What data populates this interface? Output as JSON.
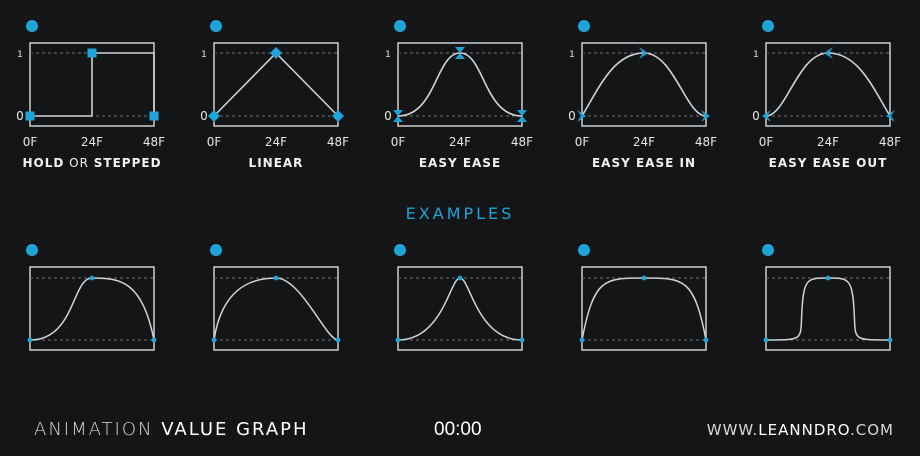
{
  "colors": {
    "background": "#141517",
    "accent": "#1fa4d8",
    "frame": "#d9dde0",
    "curve": "#cfd3d6",
    "dashed": "#6f7478",
    "text": "#f2f2f2"
  },
  "axis": {
    "y_top": "1",
    "y_bottom": "0",
    "x_start": "0F",
    "x_mid": "24F",
    "x_end": "48F"
  },
  "interpolation_graphs": [
    {
      "curve": "hold",
      "marker": "square",
      "label_parts": [
        {
          "text": "HOLD",
          "style": "bold"
        },
        {
          "text": " OR ",
          "style": "light"
        },
        {
          "text": "STEPPED",
          "style": "bold"
        }
      ]
    },
    {
      "curve": "linear",
      "marker": "diamond",
      "label_parts": [
        {
          "text": "LINEAR",
          "style": "bold"
        }
      ]
    },
    {
      "curve": "easy-ease",
      "marker": "hourglass",
      "label_parts": [
        {
          "text": "EASY EASE",
          "style": "bold"
        }
      ]
    },
    {
      "curve": "easy-ease-in",
      "marker": "arrow-right",
      "label_parts": [
        {
          "text": "EASY EASE IN",
          "style": "bold"
        }
      ]
    },
    {
      "curve": "easy-ease-out",
      "marker": "arrow-left",
      "label_parts": [
        {
          "text": "EASY EASE OUT",
          "style": "bold"
        }
      ]
    }
  ],
  "examples_title": "EXAMPLES",
  "example_graphs": [
    {
      "curve": "late-fast-rise"
    },
    {
      "curve": "early-rise-late-fall"
    },
    {
      "curve": "sharp-peak"
    },
    {
      "curve": "wide-plateau"
    },
    {
      "curve": "flat-top"
    }
  ],
  "footer": {
    "title_light": "ANIMATION",
    "title_strong": "VALUE GRAPH",
    "timecode": "00:00",
    "site_prefix": "WWW.",
    "site_strong": "LEANNDRO",
    "site_suffix": ".COM"
  }
}
